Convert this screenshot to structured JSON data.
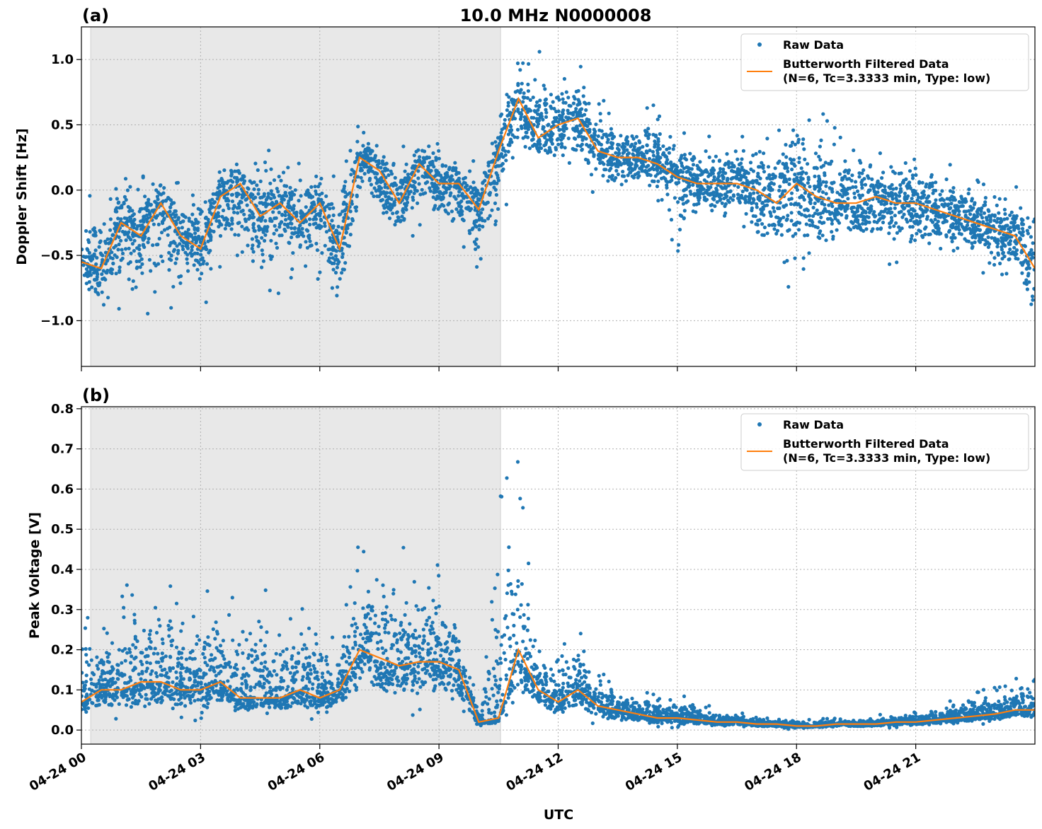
{
  "title": "10.0 MHz N0000008",
  "chart_data": [
    {
      "panel_label": "(a)",
      "type": "scatter+line",
      "ylabel": "Doppler Shift [Hz]",
      "xlabel": "",
      "ylim": [
        -1.35,
        1.25
      ],
      "yticks": [
        -1.0,
        -0.5,
        0.0,
        0.5,
        1.0
      ],
      "ytick_labels": [
        "−1.0",
        "−0.5",
        "0.0",
        "0.5",
        "1.0"
      ],
      "grid": true,
      "legend_position": "top-right",
      "shaded_span": [
        "00:14",
        "10:33"
      ],
      "legend": [
        "Raw Data",
        "Butterworth Filtered Data",
        "(N=6, Tc=3.3333 min, Type: low)"
      ],
      "x": [
        "00:00",
        "00:30",
        "01:00",
        "01:30",
        "02:00",
        "02:30",
        "03:00",
        "03:30",
        "04:00",
        "04:30",
        "05:00",
        "05:30",
        "06:00",
        "06:30",
        "07:00",
        "07:30",
        "08:00",
        "08:30",
        "09:00",
        "09:30",
        "10:00",
        "10:30",
        "11:00",
        "11:30",
        "12:00",
        "12:30",
        "13:00",
        "13:30",
        "14:00",
        "14:30",
        "15:00",
        "15:30",
        "16:00",
        "16:30",
        "17:00",
        "17:30",
        "18:00",
        "18:30",
        "19:00",
        "19:30",
        "20:00",
        "20:30",
        "21:00",
        "21:30",
        "22:00",
        "22:30",
        "23:00",
        "23:30",
        "24:00"
      ],
      "filtered": [
        -0.55,
        -0.6,
        -0.25,
        -0.35,
        -0.1,
        -0.35,
        -0.45,
        -0.05,
        0.05,
        -0.2,
        -0.1,
        -0.25,
        -0.1,
        -0.45,
        0.25,
        0.15,
        -0.1,
        0.2,
        0.05,
        0.05,
        -0.15,
        0.3,
        0.7,
        0.4,
        0.5,
        0.55,
        0.3,
        0.25,
        0.25,
        0.2,
        0.1,
        0.05,
        0.05,
        0.05,
        0.0,
        -0.1,
        0.05,
        -0.05,
        -0.1,
        -0.1,
        -0.05,
        -0.1,
        -0.1,
        -0.15,
        -0.2,
        -0.25,
        -0.3,
        -0.35,
        -0.6
      ],
      "raw_min": [
        -0.85,
        -1.0,
        -0.9,
        -1.0,
        -0.9,
        -0.95,
        -0.95,
        -0.7,
        -0.6,
        -1.05,
        -0.8,
        -0.75,
        -0.7,
        -0.95,
        -0.3,
        -0.3,
        -0.5,
        -0.3,
        -0.4,
        -0.45,
        -0.85,
        -0.4,
        0.25,
        0.1,
        0.1,
        0.0,
        -0.05,
        -0.1,
        -0.05,
        -0.1,
        -0.5,
        -0.3,
        -0.3,
        -0.3,
        -0.75,
        -0.6,
        -0.9,
        -0.7,
        -0.6,
        -0.5,
        -0.55,
        -0.6,
        -0.7,
        -0.55,
        -0.6,
        -0.6,
        -0.75,
        -0.8,
        -1.2
      ],
      "raw_max": [
        -0.1,
        0.05,
        0.15,
        0.2,
        0.2,
        0.05,
        0.1,
        0.3,
        0.35,
        0.4,
        0.25,
        0.4,
        0.15,
        0.15,
        0.55,
        0.45,
        0.35,
        0.45,
        0.45,
        0.3,
        0.25,
        0.6,
        1.1,
        1.1,
        0.85,
        1.0,
        0.8,
        0.6,
        0.6,
        0.7,
        0.5,
        0.4,
        0.45,
        0.5,
        0.6,
        0.6,
        0.8,
        0.75,
        0.5,
        0.6,
        0.3,
        0.4,
        0.35,
        0.3,
        0.2,
        0.15,
        0.05,
        0.05,
        0.0
      ]
    },
    {
      "panel_label": "(b)",
      "type": "scatter+line",
      "ylabel": "Peak Voltage [V]",
      "xlabel": "UTC",
      "ylim": [
        -0.035,
        0.805
      ],
      "yticks": [
        0.0,
        0.1,
        0.2,
        0.3,
        0.4,
        0.5,
        0.6,
        0.7,
        0.8
      ],
      "ytick_labels": [
        "0.0",
        "0.1",
        "0.2",
        "0.3",
        "0.4",
        "0.5",
        "0.6",
        "0.7",
        "0.8"
      ],
      "grid": true,
      "legend_position": "top-right",
      "shaded_span": [
        "00:14",
        "10:33"
      ],
      "legend": [
        "Raw Data",
        "Butterworth Filtered Data",
        "(N=6, Tc=3.3333 min, Type: low)"
      ],
      "x": [
        "00:00",
        "00:30",
        "01:00",
        "01:30",
        "02:00",
        "02:30",
        "03:00",
        "03:30",
        "04:00",
        "04:30",
        "05:00",
        "05:30",
        "06:00",
        "06:30",
        "07:00",
        "07:30",
        "08:00",
        "08:30",
        "09:00",
        "09:30",
        "10:00",
        "10:30",
        "11:00",
        "11:30",
        "12:00",
        "12:30",
        "13:00",
        "13:30",
        "14:00",
        "14:30",
        "15:00",
        "15:30",
        "16:00",
        "16:30",
        "17:00",
        "17:30",
        "18:00",
        "18:30",
        "19:00",
        "19:30",
        "20:00",
        "20:30",
        "21:00",
        "21:30",
        "22:00",
        "22:30",
        "23:00",
        "23:30",
        "24:00"
      ],
      "filtered": [
        0.07,
        0.1,
        0.1,
        0.12,
        0.12,
        0.1,
        0.1,
        0.12,
        0.08,
        0.08,
        0.08,
        0.1,
        0.08,
        0.1,
        0.2,
        0.18,
        0.16,
        0.17,
        0.17,
        0.15,
        0.02,
        0.03,
        0.2,
        0.1,
        0.07,
        0.1,
        0.06,
        0.05,
        0.04,
        0.03,
        0.03,
        0.025,
        0.02,
        0.02,
        0.015,
        0.015,
        0.01,
        0.01,
        0.015,
        0.015,
        0.015,
        0.02,
        0.02,
        0.025,
        0.03,
        0.035,
        0.04,
        0.05,
        0.05
      ],
      "raw_min": [
        0.02,
        0.02,
        0.02,
        0.02,
        0.02,
        0.02,
        0.02,
        0.02,
        0.02,
        0.02,
        0.02,
        0.02,
        0.02,
        0.02,
        0.03,
        0.03,
        0.03,
        0.03,
        0.03,
        0.02,
        0.005,
        0.005,
        0.03,
        0.02,
        0.02,
        0.02,
        0.01,
        0.01,
        0.01,
        0.005,
        0.005,
        0.005,
        0.005,
        0.003,
        0.003,
        0.002,
        0.002,
        0.002,
        0.003,
        0.004,
        0.005,
        0.005,
        0.005,
        0.008,
        0.01,
        0.01,
        0.015,
        0.015,
        0.02
      ],
      "raw_max": [
        0.32,
        0.24,
        0.39,
        0.38,
        0.43,
        0.3,
        0.36,
        0.35,
        0.33,
        0.43,
        0.3,
        0.35,
        0.3,
        0.25,
        0.49,
        0.51,
        0.48,
        0.45,
        0.46,
        0.3,
        0.05,
        0.62,
        0.77,
        0.2,
        0.21,
        0.26,
        0.16,
        0.12,
        0.1,
        0.09,
        0.09,
        0.08,
        0.05,
        0.05,
        0.04,
        0.03,
        0.03,
        0.03,
        0.03,
        0.03,
        0.04,
        0.04,
        0.05,
        0.06,
        0.08,
        0.1,
        0.12,
        0.13,
        0.15
      ]
    }
  ],
  "xlim": [
    "00:00",
    "23:59"
  ],
  "xticks": [
    "00:00",
    "03:00",
    "06:00",
    "09:00",
    "12:00",
    "15:00",
    "18:00",
    "21:00"
  ],
  "xtick_labels": [
    "04-24 00",
    "04-24 03",
    "04-24 06",
    "04-24 09",
    "04-24 12",
    "04-24 15",
    "04-24 18",
    "04-24 21"
  ],
  "colors": {
    "raw": "#1f77b4",
    "filtered": "#ff7f0e",
    "shade": "#e8e8e8",
    "grid": "#b0b0b0"
  }
}
